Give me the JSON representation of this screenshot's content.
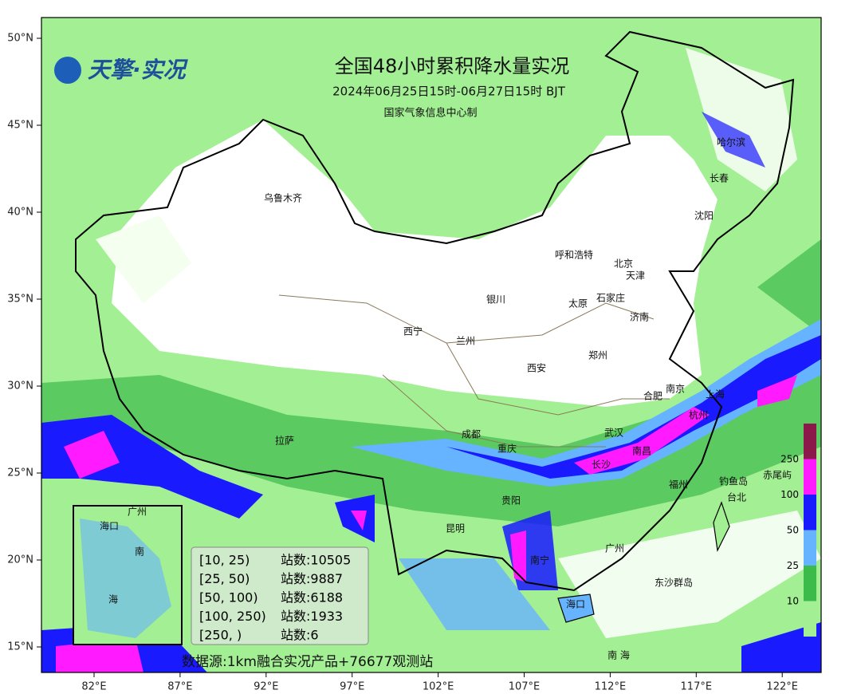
{
  "logo": "天擎·实况",
  "title": "全国48小时累积降水量实况",
  "subtitle": "2024年06月25日15时-06月27日15时  BJT",
  "producer": "国家气象信息中心制",
  "lat_labels": [
    "50°N",
    "45°N",
    "40°N",
    "35°N",
    "30°N",
    "25°N",
    "20°N",
    "15°N"
  ],
  "lon_labels": [
    "82°E",
    "87°E",
    "92°E",
    "97°E",
    "102°E",
    "107°E",
    "112°E",
    "117°E",
    "122°E"
  ],
  "cities": [
    "乌鲁木齐",
    "哈尔滨",
    "长春",
    "沈阳",
    "呼和浩特",
    "北京",
    "天津",
    "银川",
    "太原",
    "石家庄",
    "济南",
    "西宁",
    "兰州",
    "郑州",
    "西安",
    "南京",
    "合肥",
    "上海",
    "杭州",
    "拉萨",
    "成都",
    "重庆",
    "武汉",
    "长沙",
    "南昌",
    "福州",
    "钓鱼岛",
    "赤尾屿",
    "台北",
    "贵阳",
    "昆明",
    "南宁",
    "广州",
    "海口",
    "东沙群岛",
    "南 海"
  ],
  "inset_labels": [
    "广州",
    "海口",
    "南",
    "海"
  ],
  "legend": {
    "rows": [
      {
        "range": "[10, 25)",
        "count": "站数:10505"
      },
      {
        "range": "[25, 50)",
        "count": "站数:9887"
      },
      {
        "range": "[50, 100)",
        "count": "站数:6188"
      },
      {
        "range": "[100, 250)",
        "count": "站数:1933"
      },
      {
        "range": "[250, )",
        "count": "站数:6"
      }
    ]
  },
  "colorbar": {
    "labels": [
      "250",
      "100",
      "50",
      "25",
      "10"
    ]
  },
  "source": "数据源:1km融合实况产品+76677观测站"
}
